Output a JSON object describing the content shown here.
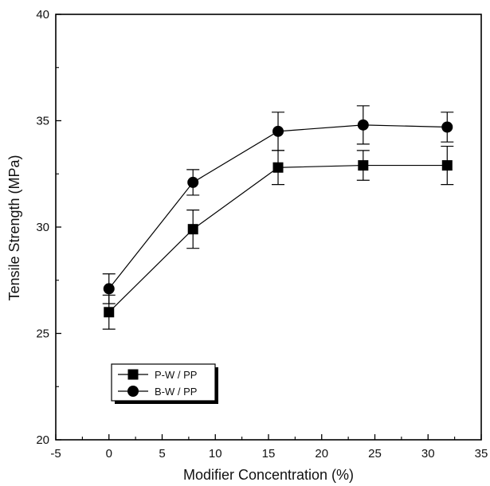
{
  "chart_data": {
    "type": "line",
    "title": "",
    "xlabel": "Modifier Concentration (%)",
    "ylabel": "Tensile Strength (MPa)",
    "xlim": [
      -5,
      35
    ],
    "ylim": [
      20,
      40
    ],
    "x_ticks": [
      "-5",
      "0",
      "5",
      "10",
      "15",
      "20",
      "25",
      "30",
      "35"
    ],
    "y_ticks": [
      "20",
      "25",
      "30",
      "35",
      "40"
    ],
    "grid": false,
    "legend_position": "bottom-left",
    "series": [
      {
        "name": "P-W / PP",
        "marker": "square",
        "color": "#000000",
        "x": [
          0,
          7.9,
          15.9,
          23.9,
          31.8
        ],
        "y": [
          26.0,
          29.9,
          32.8,
          32.9,
          32.9
        ],
        "err": [
          0.8,
          0.9,
          0.8,
          0.7,
          0.9
        ]
      },
      {
        "name": "B-W / PP",
        "marker": "circle",
        "color": "#000000",
        "x": [
          0,
          7.9,
          15.9,
          23.9,
          31.8
        ],
        "y": [
          27.1,
          32.1,
          34.5,
          34.8,
          34.7
        ],
        "err": [
          0.7,
          0.6,
          0.9,
          0.9,
          0.7
        ]
      }
    ]
  }
}
